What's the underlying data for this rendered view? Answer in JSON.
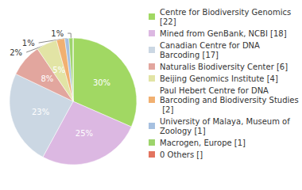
{
  "chart_data": {
    "type": "pie",
    "categories": [
      "Centre for Biodiversity Genomics [22]",
      "Mined from GenBank, NCBI [18]",
      "Canadian Centre for DNA Barcoding [17]",
      "Naturalis Biodiversity Center [6]",
      "Beijing Genomics Institute [4]",
      "Paul Hebert Centre for DNA Barcoding and Biodiversity Studies [2]",
      "University of Malaya, Museum of Zoology [1]",
      "Macrogen, Europe [1]",
      "0 Others []"
    ],
    "values": [
      30,
      25,
      23,
      8,
      5,
      2,
      1,
      1,
      0
    ],
    "value_labels": [
      "30%",
      "25%",
      "23%",
      "8%",
      "5%",
      "2%",
      "1%",
      "1%",
      null
    ],
    "colors": [
      "#a1d863",
      "#dcb8e2",
      "#cbd7e3",
      "#e2a69e",
      "#e2e4a5",
      "#f1b071",
      "#a6c0e0",
      "#9dd46b",
      "#e3745f"
    ],
    "data_labels": true,
    "legend": "right"
  }
}
